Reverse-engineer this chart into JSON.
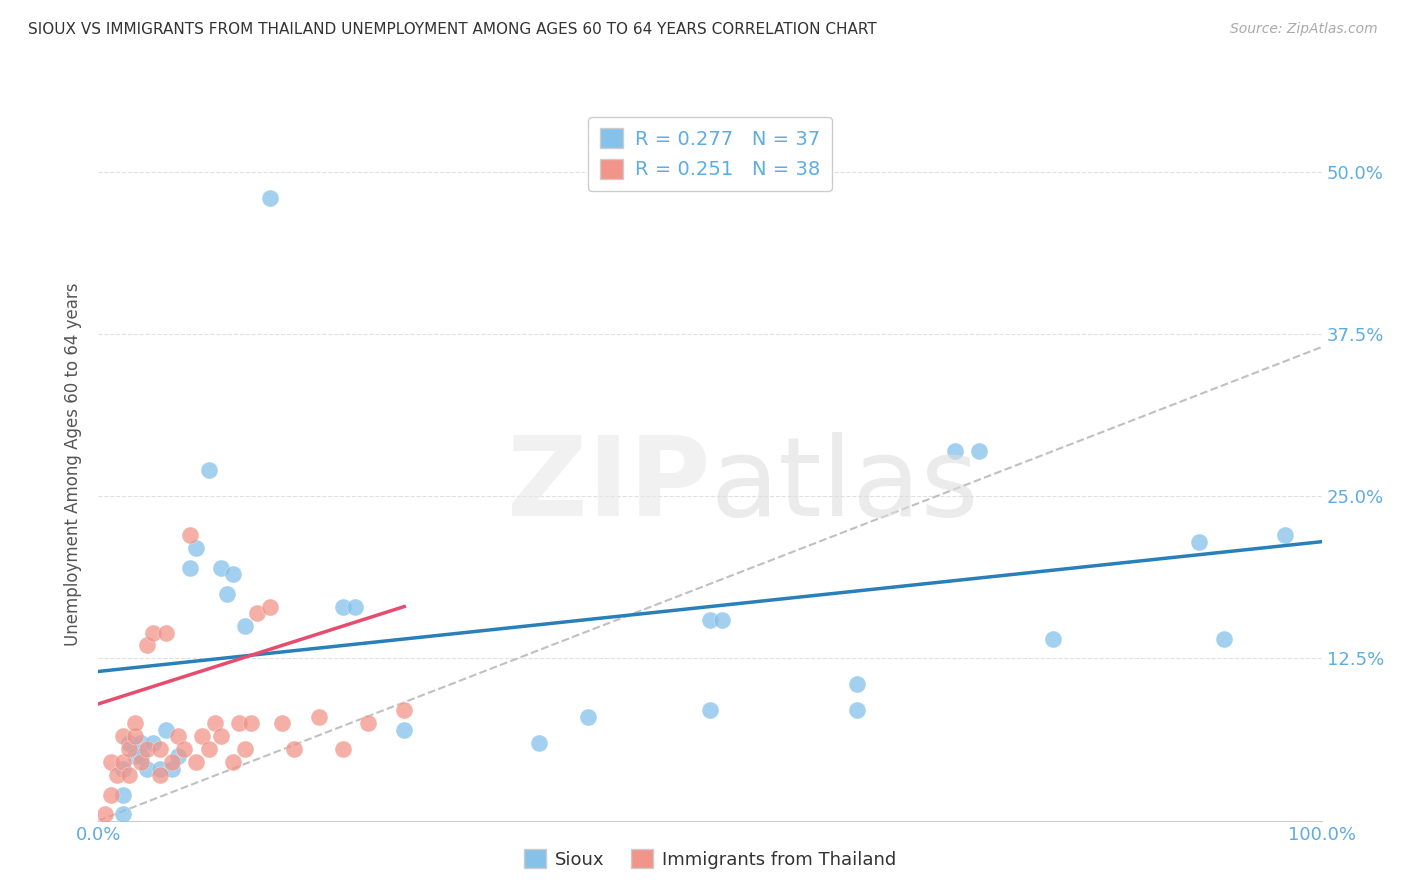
{
  "title": "SIOUX VS IMMIGRANTS FROM THAILAND UNEMPLOYMENT AMONG AGES 60 TO 64 YEARS CORRELATION CHART",
  "source": "Source: ZipAtlas.com",
  "ylabel": "Unemployment Among Ages 60 to 64 years",
  "legend_label1": "Sioux",
  "legend_label2": "Immigrants from Thailand",
  "r1": 0.277,
  "n1": 37,
  "r2": 0.251,
  "n2": 38,
  "xlim": [
    0.0,
    1.0
  ],
  "ylim": [
    0.0,
    0.55
  ],
  "xtick_positions": [
    0.0,
    1.0
  ],
  "xticklabels": [
    "0.0%",
    "100.0%"
  ],
  "ytick_positions": [
    0.0,
    0.125,
    0.25,
    0.375,
    0.5
  ],
  "yticklabels": [
    "",
    "12.5%",
    "25.0%",
    "37.5%",
    "50.0%"
  ],
  "color_sioux": "#85C1E9",
  "color_sioux_edge": "#5DADE2",
  "color_thailand": "#F1948A",
  "color_thailand_edge": "#E74C3C",
  "color_line_sioux": "#2980B9",
  "color_line_thailand": "#E74C6F",
  "color_trendline": "#C0C0C0",
  "background_color": "#ffffff",
  "grid_color": "#e0e0e0",
  "tick_color": "#5DADE2",
  "sioux_x": [
    0.02,
    0.02,
    0.02,
    0.025,
    0.03,
    0.035,
    0.035,
    0.04,
    0.045,
    0.05,
    0.055,
    0.06,
    0.065,
    0.075,
    0.08,
    0.09,
    0.1,
    0.105,
    0.11,
    0.12,
    0.14,
    0.2,
    0.21,
    0.25,
    0.36,
    0.4,
    0.5,
    0.51,
    0.62,
    0.7,
    0.72,
    0.78,
    0.9,
    0.92,
    0.97,
    0.5,
    0.62
  ],
  "sioux_y": [
    0.005,
    0.02,
    0.04,
    0.06,
    0.05,
    0.06,
    0.05,
    0.04,
    0.06,
    0.04,
    0.07,
    0.04,
    0.05,
    0.195,
    0.21,
    0.27,
    0.195,
    0.175,
    0.19,
    0.15,
    0.48,
    0.165,
    0.165,
    0.07,
    0.06,
    0.08,
    0.155,
    0.155,
    0.105,
    0.285,
    0.285,
    0.14,
    0.215,
    0.14,
    0.22,
    0.085,
    0.085
  ],
  "thailand_x": [
    0.005,
    0.01,
    0.01,
    0.015,
    0.02,
    0.02,
    0.025,
    0.025,
    0.03,
    0.03,
    0.035,
    0.04,
    0.04,
    0.045,
    0.05,
    0.05,
    0.055,
    0.06,
    0.065,
    0.07,
    0.075,
    0.08,
    0.085,
    0.09,
    0.095,
    0.1,
    0.11,
    0.115,
    0.12,
    0.125,
    0.13,
    0.14,
    0.15,
    0.16,
    0.18,
    0.2,
    0.22,
    0.25
  ],
  "thailand_y": [
    0.005,
    0.02,
    0.045,
    0.035,
    0.045,
    0.065,
    0.035,
    0.055,
    0.065,
    0.075,
    0.045,
    0.055,
    0.135,
    0.145,
    0.035,
    0.055,
    0.145,
    0.045,
    0.065,
    0.055,
    0.22,
    0.045,
    0.065,
    0.055,
    0.075,
    0.065,
    0.045,
    0.075,
    0.055,
    0.075,
    0.16,
    0.165,
    0.075,
    0.055,
    0.08,
    0.055,
    0.075,
    0.085
  ],
  "sioux_line_x": [
    0.0,
    1.0
  ],
  "sioux_line_y": [
    0.115,
    0.215
  ],
  "thailand_line_x": [
    0.0,
    0.25
  ],
  "thailand_line_y": [
    0.09,
    0.165
  ],
  "dashed_line_x": [
    0.0,
    1.0
  ],
  "dashed_line_y": [
    0.0,
    0.365
  ]
}
